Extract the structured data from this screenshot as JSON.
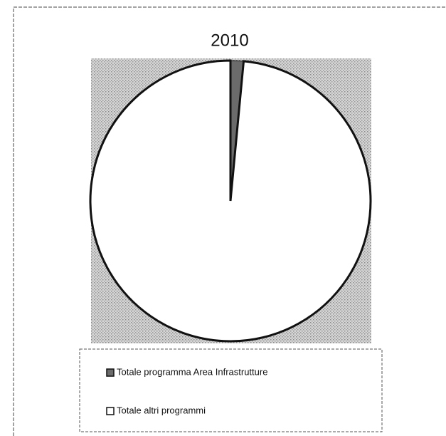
{
  "chart_data": {
    "type": "pie",
    "title": "2010",
    "categories": [
      "Totale programma Area Infrastrutture",
      "Totale altri programmi"
    ],
    "values": [
      1.5,
      98.5
    ],
    "colors": [
      "#6b6b6b",
      "#ffffff"
    ],
    "legend": "bottom"
  }
}
